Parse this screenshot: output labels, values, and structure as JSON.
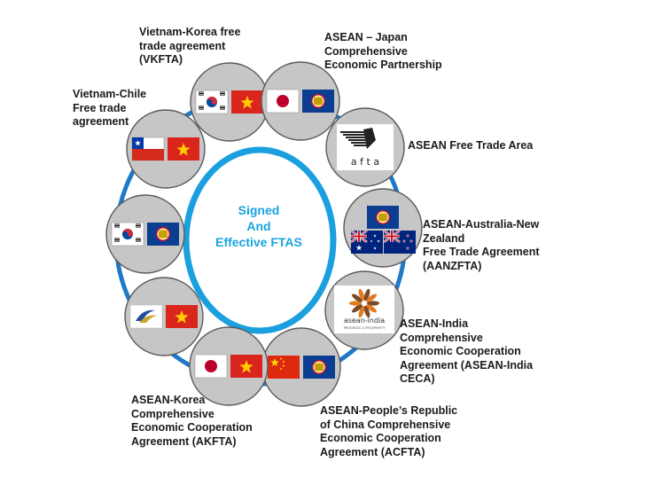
{
  "center": {
    "line1": "Signed",
    "line2": "And",
    "line3": "Effective FTAS"
  },
  "colors": {
    "ring": "#1a9fdf",
    "connector": "#1f78c8",
    "node_fill": "#c6c6c6",
    "vietnam_red": "#da251d",
    "vietnam_star": "#ffcc00",
    "asean_blue": "#0b3d91",
    "china_red": "#de2910"
  },
  "agreements": [
    {
      "id": "vkfta",
      "label": "Vietnam-Korea free\ntrade agreement\n(VKFTA)",
      "flags": [
        "korea-flag",
        "vietnam-flag"
      ]
    },
    {
      "id": "ajcep",
      "label": "ASEAN – Japan\nComprehensive\nEconomic Partnership",
      "flags": [
        "japan-flag",
        "asean-flag"
      ]
    },
    {
      "id": "afta",
      "label": "ASEAN Free Trade Area",
      "logo_text": "a f t a",
      "flags": [
        "afta-logo"
      ]
    },
    {
      "id": "aanzfta",
      "label": "ASEAN-Australia-New\nZealand\nFree Trade Agreement\n(AANZFTA)",
      "flags": [
        "asean-flag",
        "australia-flag",
        "new-zealand-flag"
      ]
    },
    {
      "id": "aifta",
      "label": "ASEAN-India\nComprehensive\nEconomic Cooperation\nAgreement (ASEAN-India\nCECA)",
      "logo_text": "asean-india",
      "logo_subtext": "PROGRESS & PROSPERITY",
      "flags": [
        "asean-india-logo"
      ]
    },
    {
      "id": "acfta",
      "label": "ASEAN-People’s Republic\nof China Comprehensive\nEconomic Cooperation\nAgreement (ACFTA)",
      "flags": [
        "china-flag",
        "asean-flag"
      ]
    },
    {
      "id": "akfta",
      "label": "ASEAN-Korea\nComprehensive\nEconomic Cooperation\nAgreement (AKFTA)",
      "flags": [
        "japan-flag",
        "vietnam-flag"
      ]
    },
    {
      "id": "eaeu",
      "label": "",
      "flags": [
        "eaeu-logo",
        "vietnam-flag"
      ]
    },
    {
      "id": "korea-asean",
      "label": "",
      "flags": [
        "korea-flag",
        "asean-flag"
      ]
    },
    {
      "id": "vcfta",
      "label": "Vietnam-Chile\nFree trade\nagreement",
      "flags": [
        "chile-flag",
        "vietnam-flag"
      ]
    }
  ]
}
